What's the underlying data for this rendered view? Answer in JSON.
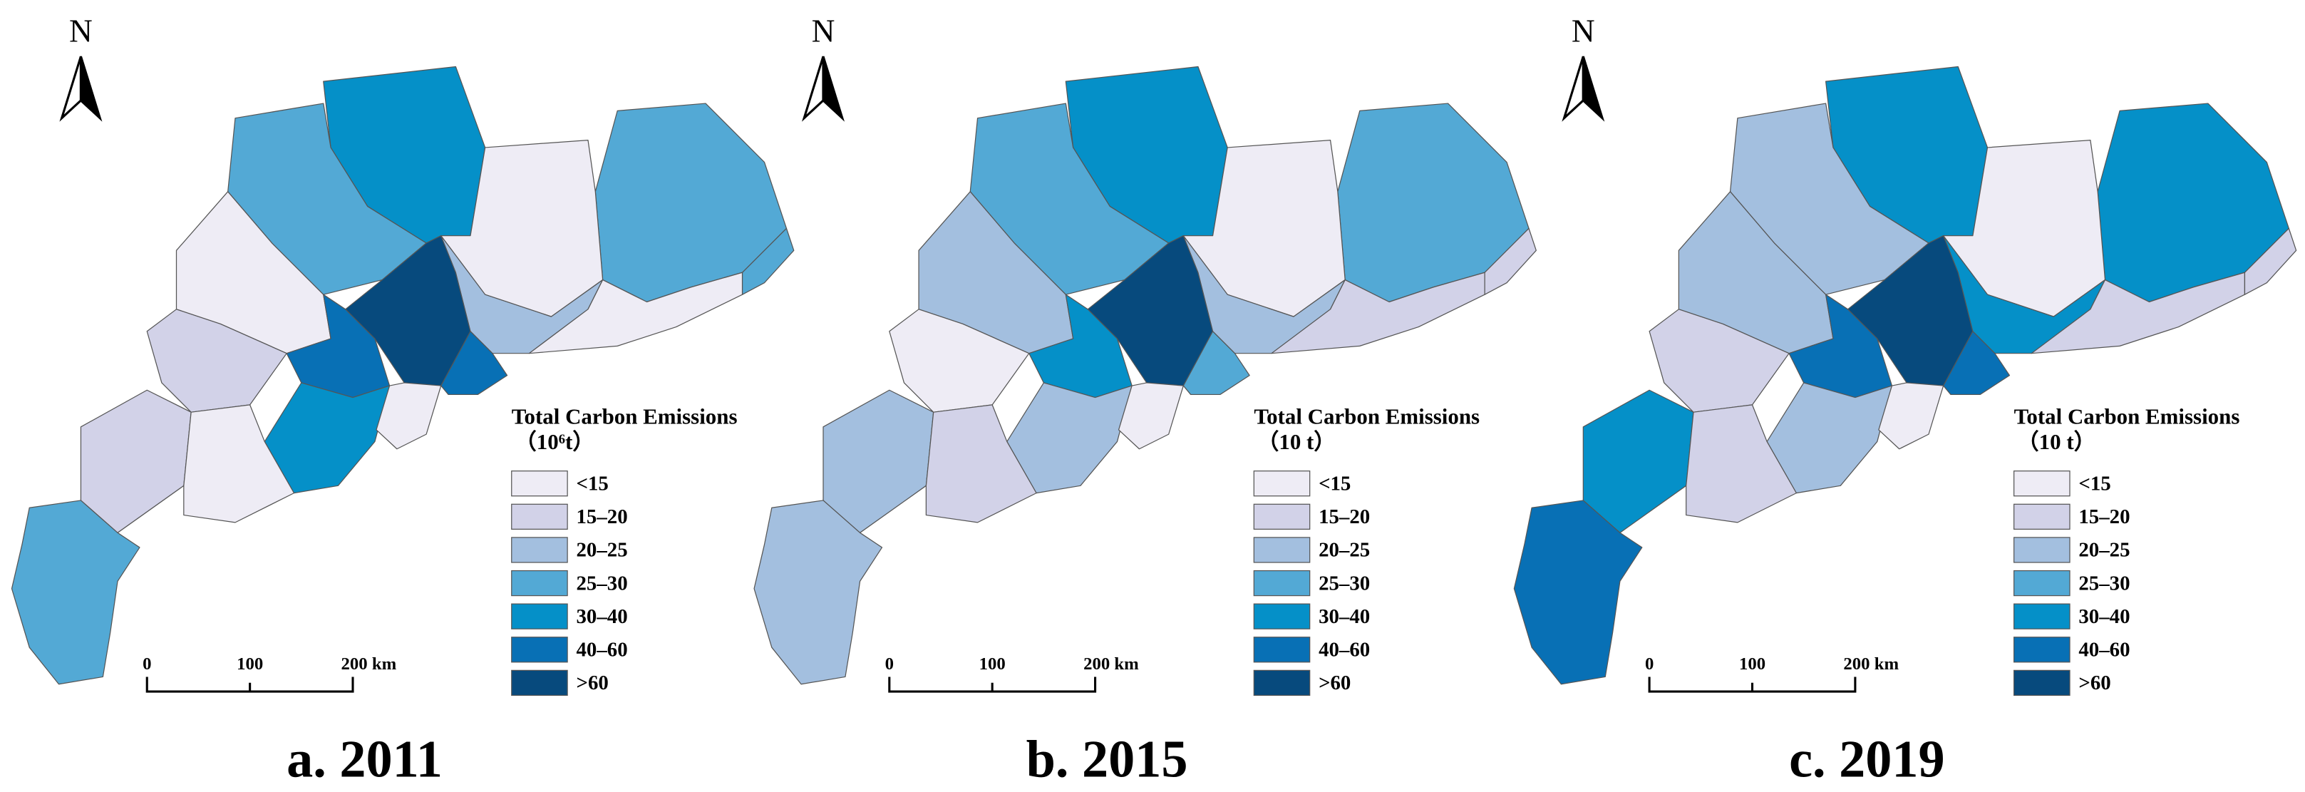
{
  "panels": [
    {
      "title": "a. 2011",
      "north": "N",
      "legend_title": "Total Carbon Emissions",
      "legend_unit": "（10⁶t）",
      "region_colors": [
        "#0590c8",
        "#53a9d5",
        "#53a9d5",
        "#eeecf5",
        "#eeecf5",
        "#074a7d",
        "#0870b5",
        "#a3bfdf",
        "#0870b5",
        "#0590c8",
        "#eeecf5",
        "#d2d2e8",
        "#d2d2e8",
        "#eeecf5",
        "#53a9d5",
        "#eeecf5",
        "#53a9d5"
      ]
    },
    {
      "title": "b. 2015",
      "north": "N",
      "legend_title": "Total Carbon Emissions",
      "legend_unit": "（10  t）",
      "region_colors": [
        "#0590c8",
        "#53a9d5",
        "#53a9d5",
        "#eeecf5",
        "#a3bfdf",
        "#074a7d",
        "#0590c8",
        "#a3bfdf",
        "#53a9d5",
        "#a3bfdf",
        "#eeecf5",
        "#eeecf5",
        "#a3bfdf",
        "#d2d2e8",
        "#a3bfdf",
        "#d2d2e8",
        "#d2d2e8"
      ]
    },
    {
      "title": "c. 2019",
      "north": "N",
      "legend_title": "Total Carbon Emissions",
      "legend_unit": "（10  t）",
      "region_colors": [
        "#0590c8",
        "#a3bfdf",
        "#0590c8",
        "#eeecf5",
        "#a3bfdf",
        "#074a7d",
        "#0870b5",
        "#0590c8",
        "#0870b5",
        "#a3bfdf",
        "#eeecf5",
        "#d2d2e8",
        "#0590c8",
        "#d2d2e8",
        "#0870b5",
        "#d2d2e8",
        "#d2d2e8"
      ]
    }
  ],
  "legend": {
    "items": [
      {
        "label": "<15",
        "color": "#eeecf5"
      },
      {
        "label": "15–20",
        "color": "#d2d2e8"
      },
      {
        "label": "20–25",
        "color": "#a3bfdf"
      },
      {
        "label": "25–30",
        "color": "#53a9d5"
      },
      {
        "label": "30–40",
        "color": "#0590c8"
      },
      {
        "label": "40–60",
        "color": "#0870b5"
      },
      {
        "label": ">60",
        "color": "#074a7d"
      }
    ]
  },
  "scale_bar": {
    "labels": [
      "0",
      "100",
      "200 km"
    ]
  }
}
